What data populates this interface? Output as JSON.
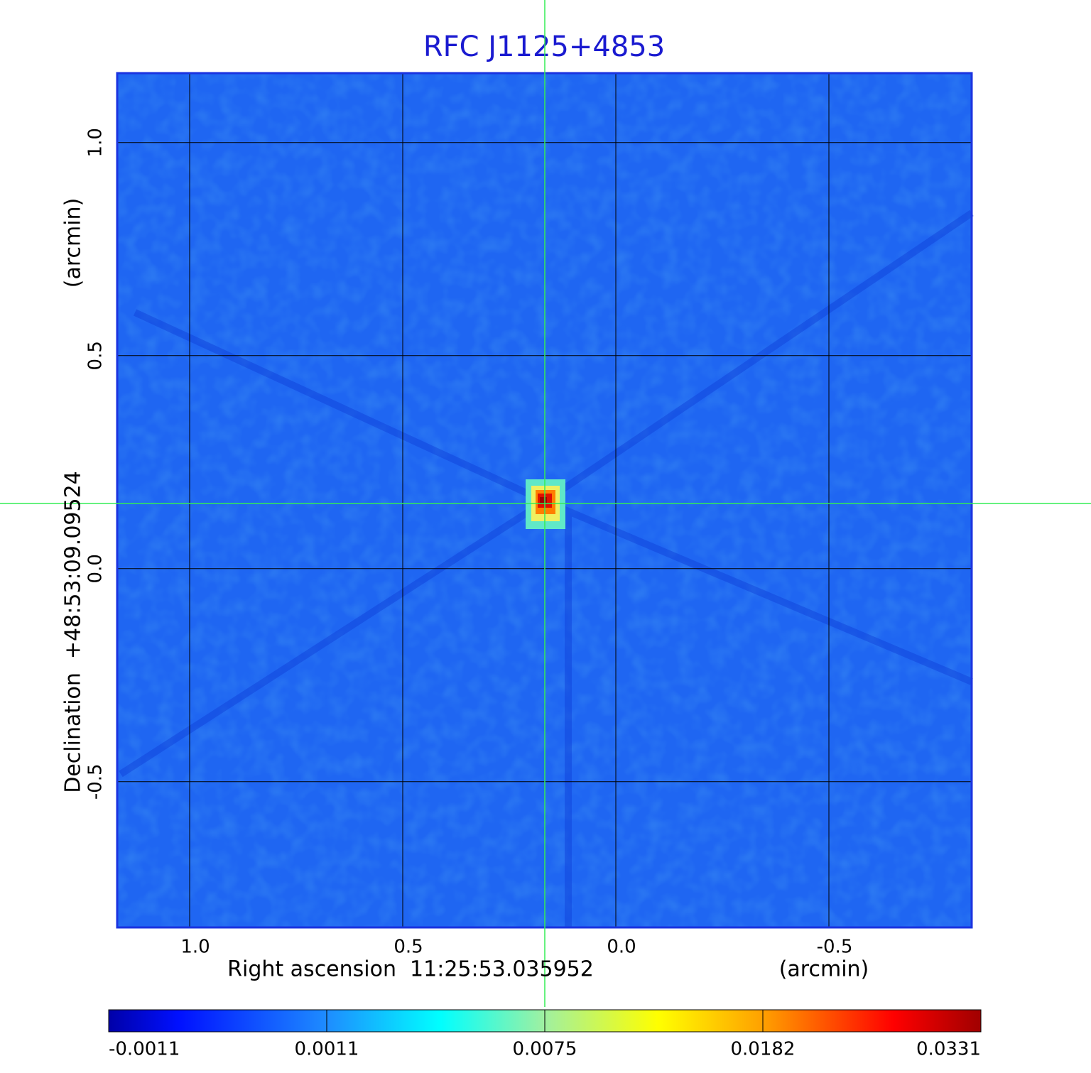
{
  "chart_data": {
    "type": "image",
    "title": "RFC J1125+4853",
    "x_label": "Right ascension  11:25:53.035952",
    "x_unit": "(arcmin)",
    "y_label": "Declination  +48:53:09.09524",
    "y_unit": "(arcmin)",
    "xlim": [
      1.17,
      -0.835
    ],
    "ylim": [
      -0.842,
      1.163
    ],
    "xticks": [
      {
        "value": 1,
        "label": "1.0"
      },
      {
        "value": 0.5,
        "label": "0.5"
      },
      {
        "value": 0,
        "label": "0.0"
      },
      {
        "value": -0.5,
        "label": "-0.5"
      }
    ],
    "yticks": [
      {
        "value": 1,
        "label": "1.0"
      },
      {
        "value": 0.5,
        "label": "0.5"
      },
      {
        "value": 0,
        "label": "0.0"
      },
      {
        "value": -0.5,
        "label": "-0.5"
      }
    ],
    "grid": true,
    "colorbar_ticks": [
      -0.0011,
      0.0011,
      0.0075,
      0.0182,
      0.0331
    ]
  }
}
